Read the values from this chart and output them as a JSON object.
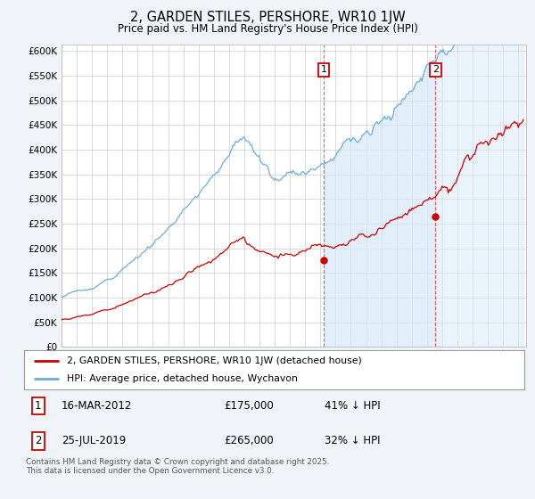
{
  "title": "2, GARDEN STILES, PERSHORE, WR10 1JW",
  "subtitle": "Price paid vs. HM Land Registry's House Price Index (HPI)",
  "ylim": [
    0,
    612500
  ],
  "yticks": [
    0,
    50000,
    100000,
    150000,
    200000,
    250000,
    300000,
    350000,
    400000,
    450000,
    500000,
    550000,
    600000
  ],
  "ytick_labels": [
    "£0",
    "£50K",
    "£100K",
    "£150K",
    "£200K",
    "£250K",
    "£300K",
    "£350K",
    "£400K",
    "£450K",
    "£500K",
    "£550K",
    "£600K"
  ],
  "xlim_start": 1995.0,
  "xlim_end": 2025.5,
  "hpi_color": "#6baed6",
  "hpi_fill_color": "#d6e9f8",
  "price_color": "#cc0000",
  "sale1_x": 2012.21,
  "sale1_y": 175000,
  "sale2_x": 2019.56,
  "sale2_y": 265000,
  "legend_line1": "2, GARDEN STILES, PERSHORE, WR10 1JW (detached house)",
  "legend_line2": "HPI: Average price, detached house, Wychavon",
  "table_row1": [
    "1",
    "16-MAR-2012",
    "£175,000",
    "41% ↓ HPI"
  ],
  "table_row2": [
    "2",
    "25-JUL-2019",
    "£265,000",
    "32% ↓ HPI"
  ],
  "footnote": "Contains HM Land Registry data © Crown copyright and database right 2025.\nThis data is licensed under the Open Government Licence v3.0.",
  "fig_bg": "#f0f4f8"
}
